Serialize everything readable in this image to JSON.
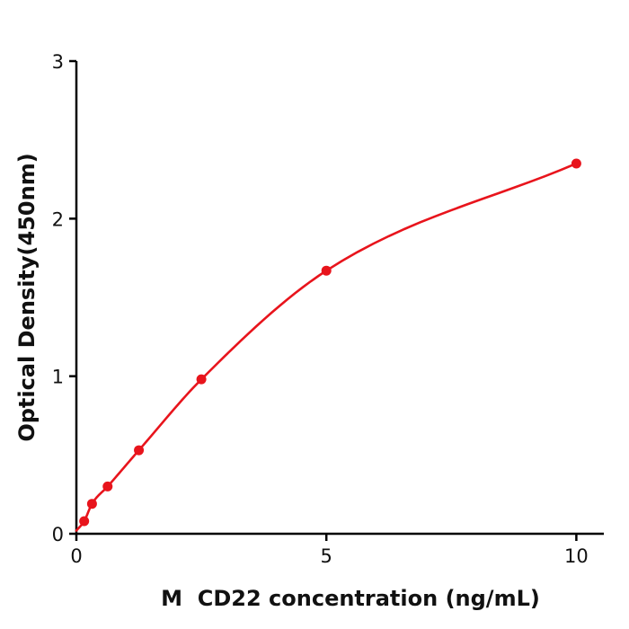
{
  "figure": {
    "background": "#ffffff"
  },
  "chart_data": {
    "type": "scatter",
    "title": "",
    "xlabel": "M  CD22 concentration (ng/mL)",
    "ylabel": "Optical Density(450nm)",
    "series": [
      {
        "x": [
          0.156,
          0.3125,
          0.625,
          1.25,
          2.5,
          5,
          10
        ],
        "y": [
          0.08,
          0.19,
          0.3,
          0.53,
          0.98,
          1.67,
          2.35
        ],
        "marker": "circle",
        "marker_color": "#e8141c",
        "line_color": "#e8141c",
        "fit_curve_start": {
          "x": 0,
          "y": 0.02
        }
      }
    ],
    "xlim": [
      0,
      10.55
    ],
    "ylim": [
      0,
      3
    ],
    "xticks": [
      "0",
      "5",
      "10"
    ],
    "xtick_values": [
      0,
      5,
      10
    ],
    "yticks": [
      "0",
      "1",
      "2",
      "3"
    ],
    "ytick_values": [
      0,
      1,
      2,
      3
    ],
    "grid": false,
    "legend": "none",
    "axis_color": "#000000",
    "label_color": "#111111"
  }
}
